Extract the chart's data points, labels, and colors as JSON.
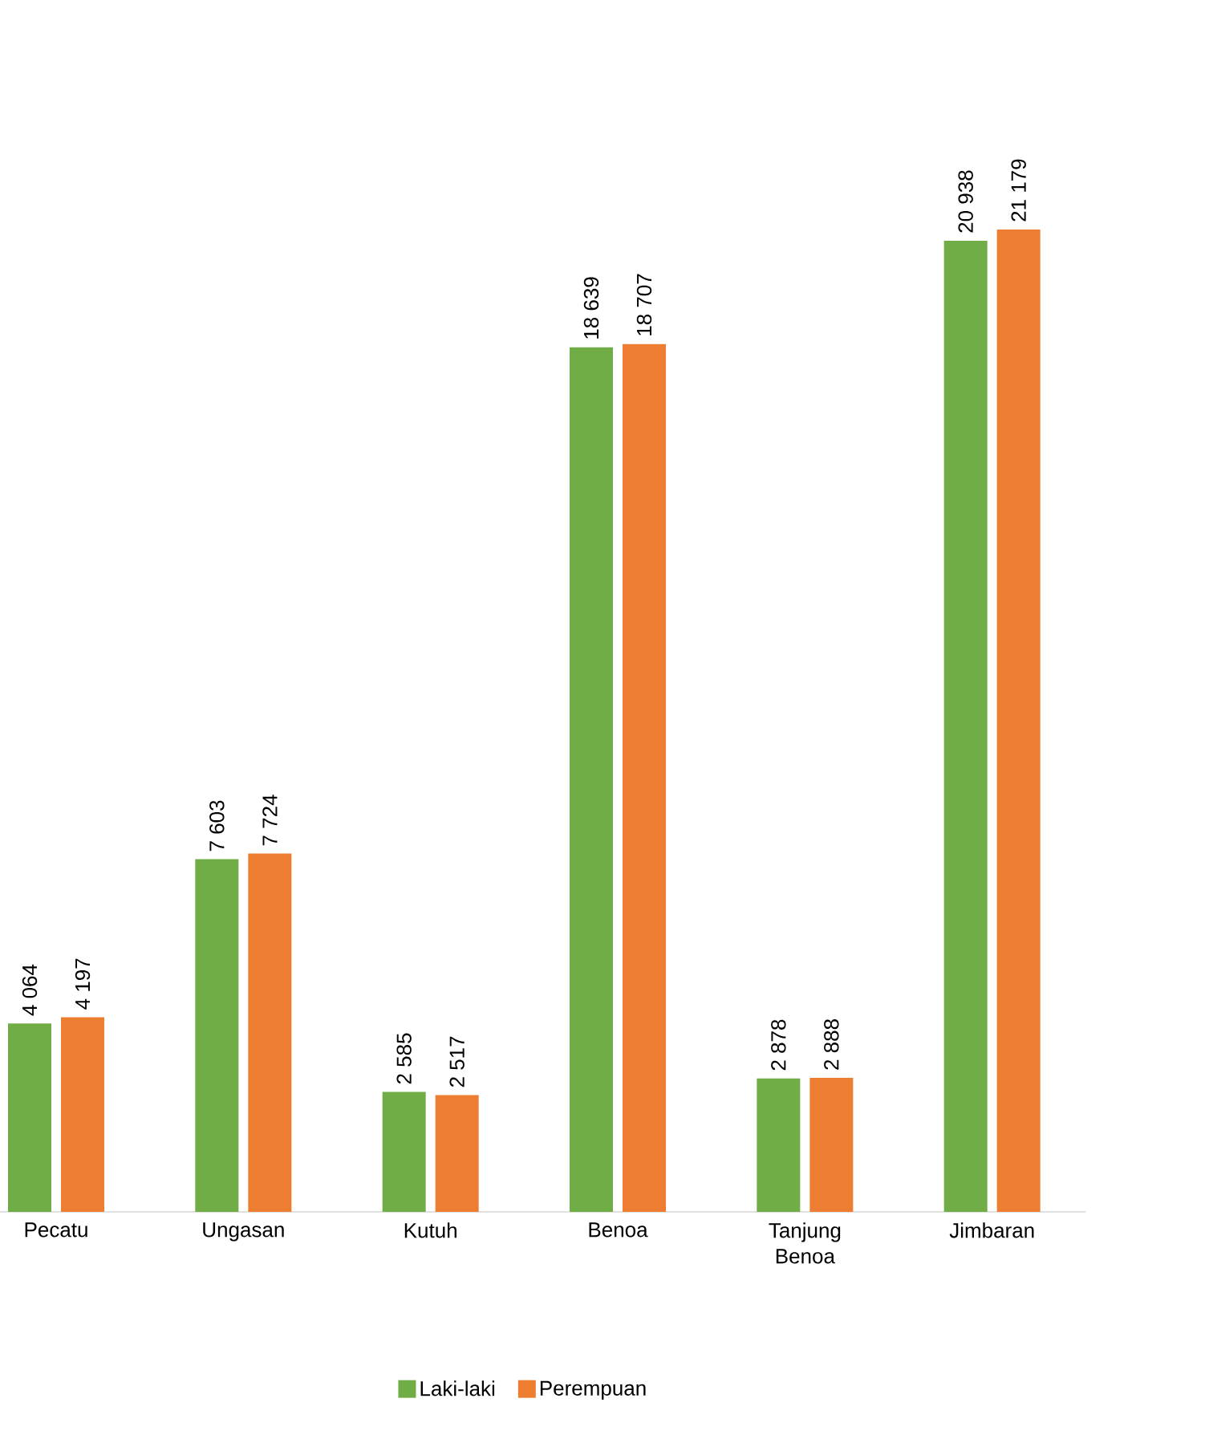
{
  "chart_data": {
    "type": "bar",
    "categories": [
      "Pecatu",
      "Ungasan",
      "Kutuh",
      "Benoa",
      "Tanjung Benoa",
      "Jimbaran"
    ],
    "series": [
      {
        "name": "Laki-laki",
        "color": "#70ad47",
        "values": [
          4064,
          7603,
          2585,
          18639,
          2878,
          20938
        ],
        "value_labels": [
          "4 064",
          "7 603",
          "2 585",
          "18 639",
          "2 878",
          "20 938"
        ]
      },
      {
        "name": "Perempuan",
        "color": "#ed7d31",
        "values": [
          4197,
          7724,
          2517,
          18707,
          2888,
          21179
        ],
        "value_labels": [
          "4 197",
          "7 724",
          "2 517",
          "18 707",
          "2 888",
          "21 179"
        ]
      }
    ],
    "legend": "bottom",
    "grid": false
  }
}
